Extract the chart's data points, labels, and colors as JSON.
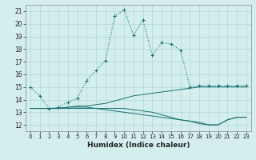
{
  "xlabel": "Humidex (Indice chaleur)",
  "ylabel": "",
  "bg_color": "#d4eeee",
  "grid_color": "#b0d8d8",
  "line_color": "#1a7070",
  "xlim": [
    -0.5,
    23.5
  ],
  "ylim": [
    11.5,
    21.5
  ],
  "xticks": [
    0,
    1,
    2,
    3,
    4,
    5,
    6,
    7,
    8,
    9,
    10,
    11,
    12,
    13,
    14,
    15,
    16,
    17,
    18,
    19,
    20,
    21,
    22,
    23
  ],
  "yticks": [
    12,
    13,
    14,
    15,
    16,
    17,
    18,
    19,
    20,
    21
  ],
  "line1_x": [
    0,
    1,
    2,
    3,
    4,
    5,
    6,
    7,
    8,
    9,
    10,
    11,
    12,
    13,
    14,
    15,
    16,
    17,
    18,
    19,
    20,
    21,
    22,
    23
  ],
  "line1_y": [
    15.0,
    14.3,
    13.3,
    13.4,
    13.8,
    14.1,
    15.5,
    16.3,
    17.1,
    20.6,
    21.1,
    19.1,
    20.3,
    17.5,
    18.5,
    18.4,
    17.9,
    15.0,
    15.1,
    15.1,
    15.1,
    15.1,
    15.1,
    15.1
  ],
  "line2_x": [
    0,
    1,
    2,
    3,
    4,
    5,
    6,
    7,
    8,
    9,
    10,
    11,
    12,
    13,
    14,
    15,
    16,
    17,
    18,
    19,
    20,
    21,
    22,
    23
  ],
  "line2_y": [
    13.3,
    13.3,
    13.3,
    13.3,
    13.4,
    13.5,
    13.5,
    13.6,
    13.7,
    13.9,
    14.1,
    14.3,
    14.4,
    14.5,
    14.6,
    14.7,
    14.8,
    14.9,
    15.0,
    15.0,
    15.0,
    15.0,
    15.0,
    15.0
  ],
  "line3_x": [
    0,
    1,
    2,
    3,
    4,
    5,
    6,
    7,
    8,
    9,
    10,
    11,
    12,
    13,
    14,
    15,
    16,
    17,
    18,
    19,
    20,
    21,
    22,
    23
  ],
  "line3_y": [
    13.3,
    13.3,
    13.3,
    13.3,
    13.3,
    13.3,
    13.3,
    13.3,
    13.3,
    13.3,
    13.3,
    13.2,
    13.1,
    13.0,
    12.8,
    12.6,
    12.4,
    12.3,
    12.1,
    12.0,
    12.0,
    12.4,
    12.6,
    12.6
  ],
  "line4_x": [
    0,
    1,
    2,
    3,
    4,
    5,
    6,
    7,
    8,
    9,
    10,
    11,
    12,
    13,
    14,
    15,
    16,
    17,
    18,
    19,
    20,
    21,
    22,
    23
  ],
  "line4_y": [
    13.3,
    13.3,
    13.3,
    13.3,
    13.4,
    13.4,
    13.4,
    13.3,
    13.2,
    13.1,
    13.0,
    12.9,
    12.8,
    12.7,
    12.6,
    12.5,
    12.4,
    12.3,
    12.2,
    12.0,
    12.0,
    12.4,
    12.6,
    12.6
  ]
}
